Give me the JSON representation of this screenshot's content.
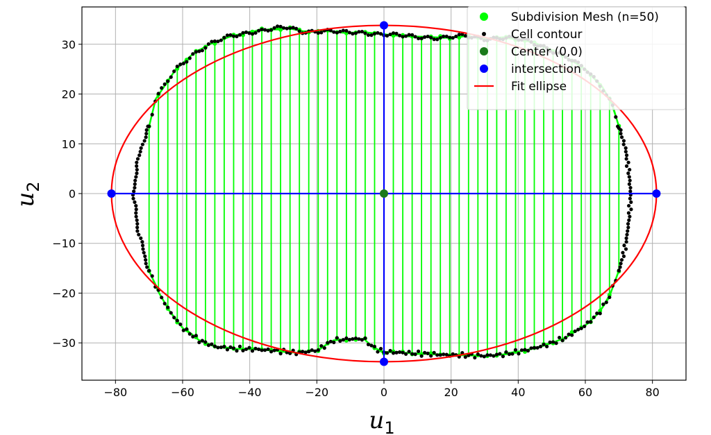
{
  "chart_data": {
    "type": "scatter",
    "xlabel": "u",
    "xlabel_sub": "1",
    "ylabel": "u",
    "ylabel_sub": "2",
    "xlim": [
      -90,
      90
    ],
    "ylim": [
      -37.5,
      37.5
    ],
    "xticks": [
      -80,
      -60,
      -40,
      -20,
      0,
      20,
      40,
      60,
      80
    ],
    "xtick_labels": [
      "−80",
      "−60",
      "−40",
      "−20",
      "0",
      "20",
      "40",
      "60",
      "80"
    ],
    "yticks": [
      -30,
      -20,
      -10,
      0,
      10,
      20,
      30
    ],
    "ytick_labels": [
      "−30",
      "−20",
      "−10",
      "0",
      "10",
      "20",
      "30"
    ],
    "grid": true,
    "legend_position": "top-right",
    "colors": {
      "mesh": "#00ff00",
      "contour": "#000000",
      "center": "#1a7a1a",
      "intersection": "#0000ff",
      "ellipse": "#ff0000",
      "axes_lines": "#0000ff"
    },
    "legend": [
      {
        "label": "Subdivision Mesh (n=50)",
        "marker": "dot",
        "color": "#00ff00"
      },
      {
        "label": "Cell contour",
        "marker": "small-dot",
        "color": "#000000"
      },
      {
        "label": "Center (0,0)",
        "marker": "dot",
        "color": "#1a7a1a"
      },
      {
        "label": "intersection",
        "marker": "dot",
        "color": "#0000ff"
      },
      {
        "label": "Fit ellipse",
        "marker": "line",
        "color": "#ff0000"
      }
    ],
    "ellipse": {
      "cx": 0,
      "cy": 0,
      "a": 81.2,
      "b": 33.8
    },
    "center_point": {
      "x": 0,
      "y": 0
    },
    "intersections": [
      {
        "x": -81.2,
        "y": 0
      },
      {
        "x": 81.2,
        "y": 0
      },
      {
        "x": 0,
        "y": 33.8
      },
      {
        "x": 0,
        "y": -33.8
      }
    ],
    "mesh_count": 50,
    "contour_top": [
      {
        "x": -70,
        "y": 13.5
      },
      {
        "x": -68,
        "y": 19
      },
      {
        "x": -65,
        "y": 22
      },
      {
        "x": -62,
        "y": 25
      },
      {
        "x": -57,
        "y": 28
      },
      {
        "x": -52,
        "y": 30
      },
      {
        "x": -46,
        "y": 31.5
      },
      {
        "x": -40,
        "y": 32.5
      },
      {
        "x": -34,
        "y": 33
      },
      {
        "x": -29,
        "y": 33.3
      },
      {
        "x": -24,
        "y": 32.6
      },
      {
        "x": -18,
        "y": 32.7
      },
      {
        "x": -12,
        "y": 32.3
      },
      {
        "x": -6,
        "y": 32.4
      },
      {
        "x": 0,
        "y": 32
      },
      {
        "x": 6,
        "y": 31.6
      },
      {
        "x": 12,
        "y": 31.5
      },
      {
        "x": 18,
        "y": 31.3
      },
      {
        "x": 24,
        "y": 31.6
      },
      {
        "x": 30,
        "y": 31.2
      },
      {
        "x": 36,
        "y": 31.3
      },
      {
        "x": 42,
        "y": 30.8
      },
      {
        "x": 48,
        "y": 29.5
      },
      {
        "x": 54,
        "y": 27.5
      },
      {
        "x": 60,
        "y": 25
      },
      {
        "x": 65,
        "y": 21.5
      },
      {
        "x": 68,
        "y": 18
      },
      {
        "x": 70,
        "y": 13.5
      }
    ],
    "contour_right": [
      {
        "x": 70,
        "y": 13.5
      },
      {
        "x": 72,
        "y": 9
      },
      {
        "x": 73,
        "y": 4
      },
      {
        "x": 73.5,
        "y": 0
      },
      {
        "x": 73.2,
        "y": -4
      },
      {
        "x": 72.5,
        "y": -8
      },
      {
        "x": 71.5,
        "y": -12
      },
      {
        "x": 70,
        "y": -15.5
      }
    ],
    "contour_bottom": [
      {
        "x": -70,
        "y": -15.5
      },
      {
        "x": -67,
        "y": -20
      },
      {
        "x": -64,
        "y": -23.5
      },
      {
        "x": -60,
        "y": -27
      },
      {
        "x": -55,
        "y": -29.5
      },
      {
        "x": -50,
        "y": -30.8
      },
      {
        "x": -44,
        "y": -31.2
      },
      {
        "x": -38,
        "y": -31.3
      },
      {
        "x": -32,
        "y": -31.6
      },
      {
        "x": -26,
        "y": -32
      },
      {
        "x": -20,
        "y": -31.5
      },
      {
        "x": -15,
        "y": -29.5
      },
      {
        "x": -10,
        "y": -29.2
      },
      {
        "x": -6,
        "y": -29.2
      },
      {
        "x": -3,
        "y": -31
      },
      {
        "x": 0,
        "y": -31.8
      },
      {
        "x": 6,
        "y": -32
      },
      {
        "x": 12,
        "y": -32.2
      },
      {
        "x": 18,
        "y": -32.4
      },
      {
        "x": 24,
        "y": -32.5
      },
      {
        "x": 30,
        "y": -32.6
      },
      {
        "x": 36,
        "y": -32.3
      },
      {
        "x": 42,
        "y": -31.5
      },
      {
        "x": 48,
        "y": -30.5
      },
      {
        "x": 54,
        "y": -29
      },
      {
        "x": 60,
        "y": -26.5
      },
      {
        "x": 64,
        "y": -24
      },
      {
        "x": 67,
        "y": -21
      },
      {
        "x": 70,
        "y": -15.5
      }
    ],
    "contour_left": [
      {
        "x": -70,
        "y": 13.5
      },
      {
        "x": -72.5,
        "y": 9
      },
      {
        "x": -74,
        "y": 4
      },
      {
        "x": -74.5,
        "y": 0
      },
      {
        "x": -74,
        "y": -4
      },
      {
        "x": -73,
        "y": -8
      },
      {
        "x": -71.5,
        "y": -12
      },
      {
        "x": -70,
        "y": -15.5
      }
    ]
  }
}
